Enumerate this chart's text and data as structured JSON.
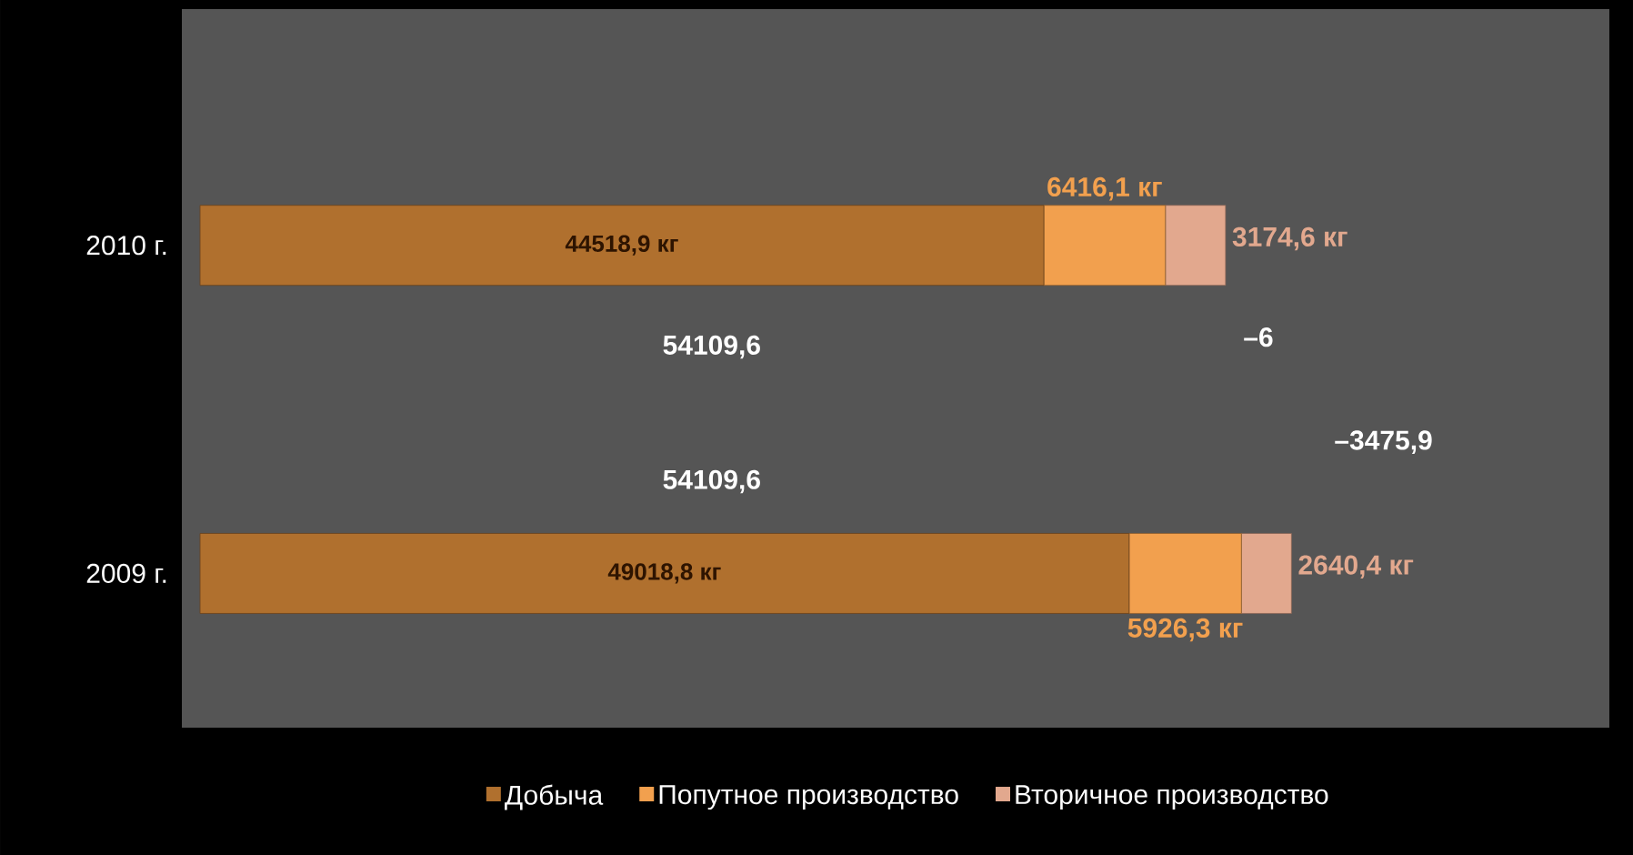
{
  "chart_data": {
    "type": "bar",
    "orientation": "horizontal",
    "stacked": true,
    "categories": [
      "2010 г.",
      "2009 г."
    ],
    "series": [
      {
        "name": "Добыча",
        "color": "#b0702e",
        "values": [
          44518.9,
          49018.8
        ],
        "value_labels": [
          "44518,9 кг",
          "49018,8 кг"
        ]
      },
      {
        "name": "Попутное производство",
        "color": "#f2a04e",
        "values": [
          6416.1,
          5926.3
        ],
        "value_labels": [
          "6416,1 кг",
          "5926,3 кг"
        ]
      },
      {
        "name": "Вторичное производство",
        "color": "#e2a88e",
        "values": [
          3174.6,
          2640.4
        ],
        "value_labels": [
          "3174,6 кг",
          "2640,4 кг"
        ]
      }
    ],
    "annotations": [
      "54109,6",
      "–6",
      "54109,6",
      "–3475,9"
    ],
    "legend": "bottom",
    "tick_labels": "y"
  }
}
